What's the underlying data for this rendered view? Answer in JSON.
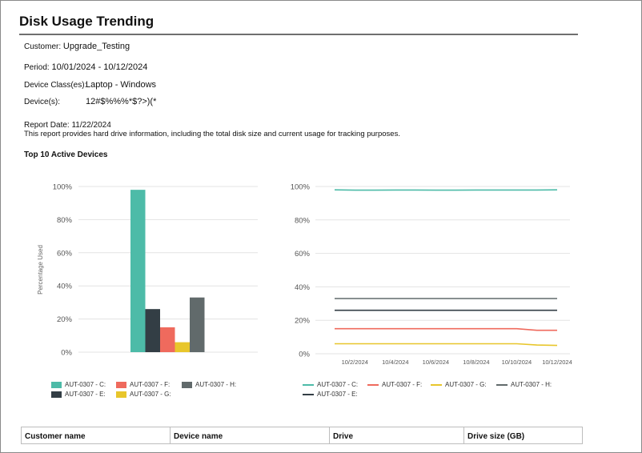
{
  "report": {
    "title": "Disk Usage Trending",
    "customer_label": "Customer:",
    "customer_value": "Upgrade_Testing",
    "period_label": "Period:",
    "period_value": "10/01/2024 - 10/12/2024",
    "device_class_label": "Device Class(es):",
    "device_class_value": "Laptop - Windows",
    "devices_label": "Device(s):",
    "devices_value": "12#$%%%*$?>)(*",
    "report_date": "Report Date: 11/22/2024",
    "description": "This report provides hard drive information, including the total disk size and current usage for tracking purposes.",
    "section_title": "Top 10 Active Devices"
  },
  "colors": {
    "C": "#4dbba8",
    "E": "#333e45",
    "F": "#ef6a5d",
    "G": "#e8c62b",
    "H": "#616a6b"
  },
  "chart_data": [
    {
      "type": "bar",
      "title": "",
      "xlabel": "",
      "ylabel": "Percentage Used",
      "ylim": [
        0,
        100
      ],
      "yticks": [
        "0%",
        "20%",
        "40%",
        "60%",
        "80%",
        "100%"
      ],
      "grid": true,
      "legend_position": "bottom",
      "series": [
        {
          "name": "AUT-0307 - C:",
          "value": 98,
          "color": "#4dbba8"
        },
        {
          "name": "AUT-0307 - E:",
          "value": 26,
          "color": "#333e45"
        },
        {
          "name": "AUT-0307 - F:",
          "value": 15,
          "color": "#ef6a5d"
        },
        {
          "name": "AUT-0307 - G:",
          "value": 6,
          "color": "#e8c62b"
        },
        {
          "name": "AUT-0307 - H:",
          "value": 33,
          "color": "#616a6b"
        }
      ]
    },
    {
      "type": "line",
      "title": "",
      "xlabel": "",
      "ylabel": "",
      "ylim": [
        0,
        100
      ],
      "yticks": [
        "0%",
        "20%",
        "40%",
        "60%",
        "80%",
        "100%"
      ],
      "x": [
        "10/1/2024",
        "10/2/2024",
        "10/3/2024",
        "10/4/2024",
        "10/5/2024",
        "10/6/2024",
        "10/7/2024",
        "10/8/2024",
        "10/9/2024",
        "10/10/2024",
        "10/11/2024",
        "10/12/2024"
      ],
      "xtick_labels": [
        "10/2/2024",
        "10/4/2024",
        "10/6/2024",
        "10/8/2024",
        "10/10/2024",
        "10/12/2024"
      ],
      "grid": true,
      "legend_position": "bottom",
      "series": [
        {
          "name": "AUT-0307 - C:",
          "color": "#4dbba8",
          "values": [
            98,
            97.8,
            97.8,
            97.9,
            97.9,
            97.8,
            97.8,
            97.9,
            97.9,
            97.9,
            97.9,
            98
          ]
        },
        {
          "name": "AUT-0307 - F:",
          "color": "#ef6a5d",
          "values": [
            15,
            15,
            15,
            15,
            15,
            15,
            15,
            15,
            15,
            15,
            14,
            14
          ]
        },
        {
          "name": "AUT-0307 - G:",
          "color": "#e8c62b",
          "values": [
            6,
            6,
            6,
            6,
            6,
            6,
            6,
            6,
            6,
            6,
            5.2,
            5
          ]
        },
        {
          "name": "AUT-0307 - H:",
          "color": "#616a6b",
          "values": [
            33,
            33,
            33,
            33,
            33,
            33,
            33,
            33,
            33,
            33,
            33,
            33
          ]
        },
        {
          "name": "AUT-0307 - E:",
          "color": "#333e45",
          "values": [
            26,
            26,
            26,
            26,
            26,
            26,
            26,
            26,
            26,
            26,
            26,
            26
          ]
        }
      ]
    }
  ],
  "table": {
    "headers": [
      "Customer name",
      "Device name",
      "Drive",
      "Drive size (GB)"
    ]
  }
}
